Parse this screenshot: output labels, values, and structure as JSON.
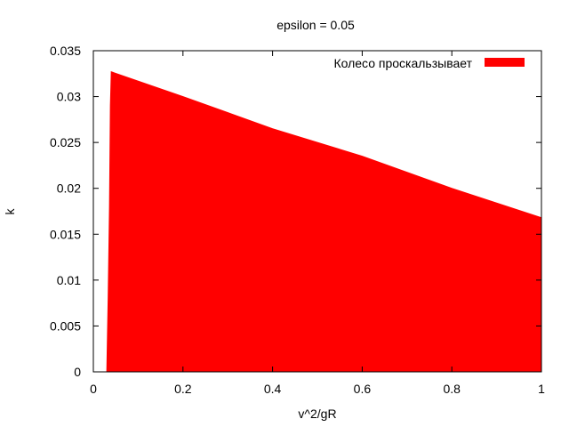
{
  "chart_data": {
    "type": "area",
    "title": "epsilon = 0.05",
    "xlabel": "v^2/gR",
    "ylabel": "k",
    "xlim": [
      0,
      1
    ],
    "ylim": [
      0,
      0.035
    ],
    "x_ticks": [
      "0",
      "0.2",
      "0.4",
      "0.6",
      "0.8",
      "1"
    ],
    "y_ticks": [
      "0",
      "0.005",
      "0.01",
      "0.015",
      "0.02",
      "0.025",
      "0.03",
      "0.035"
    ],
    "legend_position": "top-right",
    "grid": false,
    "series": [
      {
        "name": "Колесо проскальзывает",
        "color": "#ff0000",
        "x": [
          0.03,
          0.033,
          0.036,
          0.038,
          0.04,
          0.2,
          0.4,
          0.6,
          0.8,
          1.0
        ],
        "y": [
          0.0,
          0.008,
          0.018,
          0.029,
          0.0327,
          0.03,
          0.0265,
          0.0235,
          0.02,
          0.0168
        ]
      }
    ]
  }
}
